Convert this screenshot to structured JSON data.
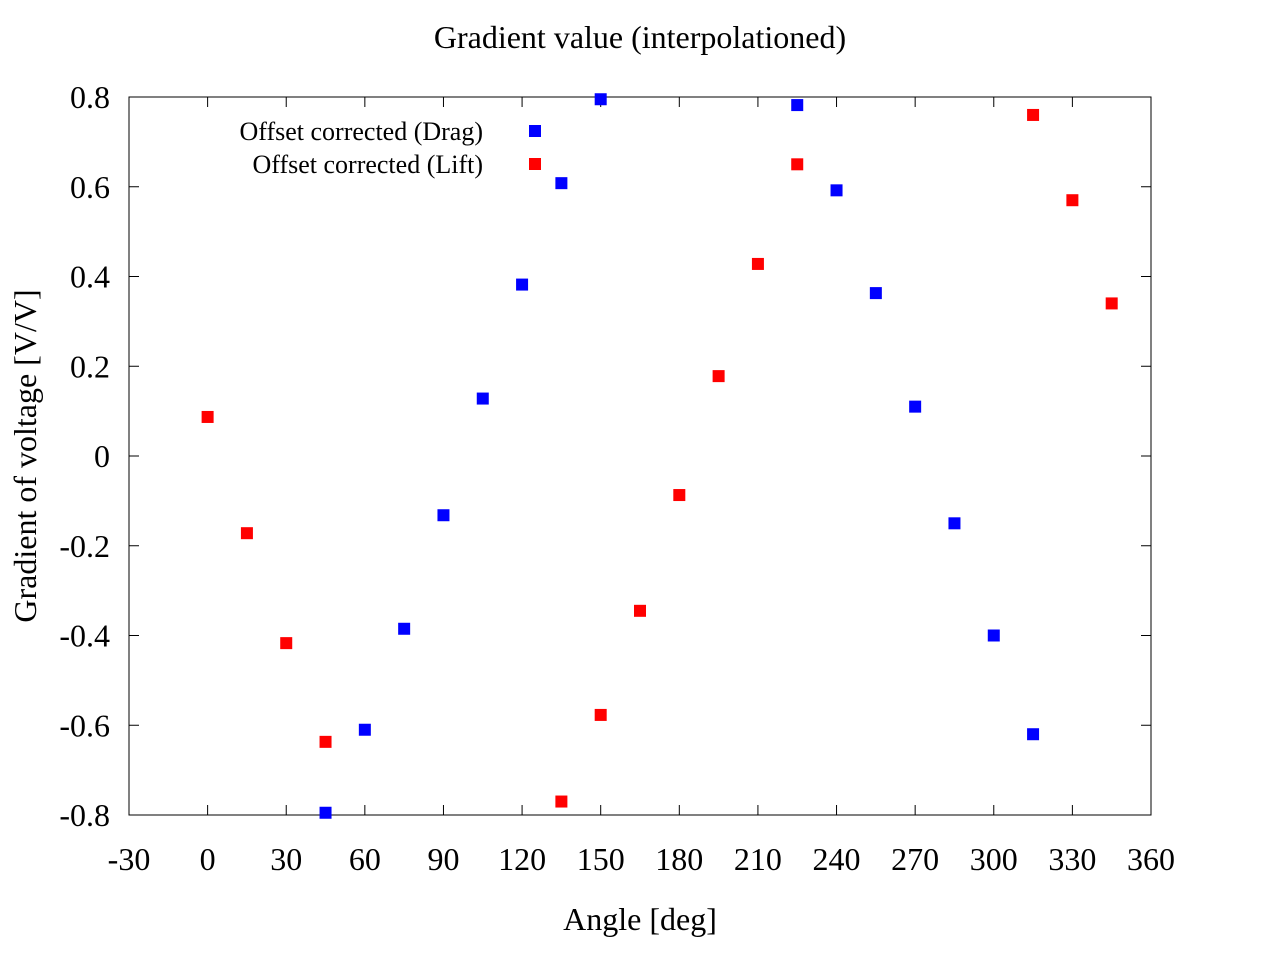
{
  "chart_data": {
    "type": "scatter",
    "title": "Gradient value (interpolationed)",
    "xlabel": "Angle [deg]",
    "ylabel": "Gradient of voltage [V/V]",
    "xlim": [
      -30,
      360
    ],
    "ylim": [
      -0.8,
      0.8
    ],
    "x_ticks": [
      -30,
      0,
      30,
      60,
      90,
      120,
      150,
      180,
      210,
      240,
      270,
      300,
      330,
      360
    ],
    "y_ticks": [
      -0.8,
      -0.6,
      -0.4,
      -0.2,
      0,
      0.2,
      0.4,
      0.6,
      0.8
    ],
    "x_tick_labels": [
      "-30",
      "0",
      "30",
      "60",
      "90",
      "120",
      "150",
      "180",
      "210",
      "240",
      "270",
      "300",
      "330",
      "360"
    ],
    "y_tick_labels": [
      "-0.8",
      "-0.6",
      "-0.4",
      "-0.2",
      "0",
      "0.2",
      "0.4",
      "0.6",
      "0.8"
    ],
    "grid": false,
    "legend_position": "top-left",
    "series": [
      {
        "name": "Offset corrected (Drag)",
        "color": "#0000ff",
        "marker": "square",
        "x": [
          45,
          60,
          75,
          90,
          105,
          120,
          135,
          150,
          225,
          240,
          255,
          270,
          285,
          300,
          315
        ],
        "y": [
          -0.795,
          -0.61,
          -0.385,
          -0.132,
          0.128,
          0.382,
          0.608,
          0.795,
          0.782,
          0.592,
          0.363,
          0.11,
          -0.15,
          -0.4,
          -0.62
        ]
      },
      {
        "name": "Offset corrected (Lift)",
        "color": "#ff0000",
        "marker": "square",
        "x": [
          0,
          15,
          30,
          45,
          135,
          150,
          165,
          180,
          195,
          210,
          225,
          315,
          330,
          345
        ],
        "y": [
          0.087,
          -0.172,
          -0.417,
          -0.637,
          -0.77,
          -0.577,
          -0.345,
          -0.087,
          0.178,
          0.428,
          0.65,
          0.76,
          0.57,
          0.34
        ]
      }
    ]
  }
}
